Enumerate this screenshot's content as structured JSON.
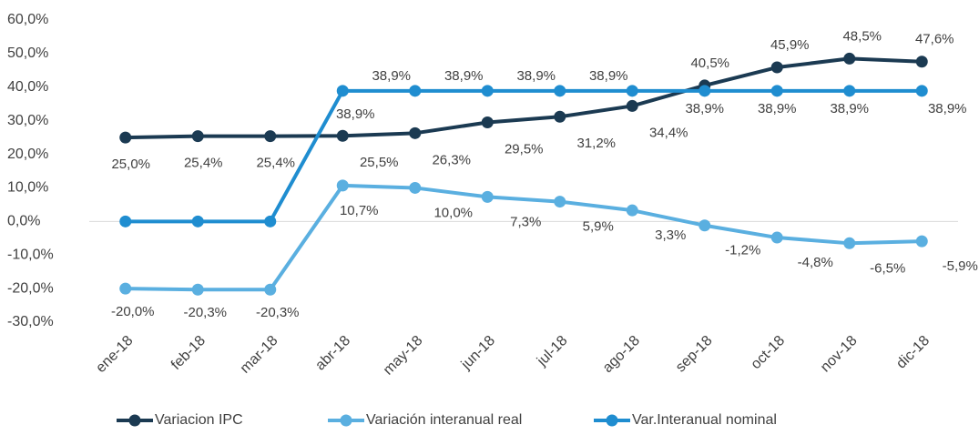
{
  "chart_data": {
    "type": "line",
    "categories": [
      "ene-18",
      "feb-18",
      "mar-18",
      "abr-18",
      "may-18",
      "jun-18",
      "jul-18",
      "ago-18",
      "sep-18",
      "oct-18",
      "nov-18",
      "dic-18"
    ],
    "series": [
      {
        "name": "Variacion IPC",
        "color": "#1b3a52",
        "values": [
          25.0,
          25.4,
          25.4,
          25.5,
          26.3,
          29.5,
          31.2,
          34.4,
          40.5,
          45.9,
          48.5,
          47.6
        ],
        "value_labels": [
          "25,0%",
          "25,4%",
          "25,4%",
          "25,5%",
          "26,3%",
          "29,5%",
          "31,2%",
          "34,4%",
          "40,5%",
          "45,9%",
          "48,5%",
          "47,6%"
        ]
      },
      {
        "name": "Variación interanual real",
        "color": "#5aafe0",
        "values": [
          -20.0,
          -20.3,
          -20.3,
          10.7,
          10.0,
          7.3,
          5.9,
          3.3,
          -1.2,
          -4.8,
          -6.5,
          -5.9
        ],
        "value_labels": [
          "-20,0%",
          "-20,3%",
          "-20,3%",
          "10,7%",
          "10,0%",
          "7,3%",
          "5,9%",
          "3,3%",
          "-1,2%",
          "-4,8%",
          "-6,5%",
          "-5,9%"
        ]
      },
      {
        "name": "Var.Interanual nominal",
        "color": "#1f8dd0",
        "values": [
          0,
          0,
          0,
          38.9,
          38.9,
          38.9,
          38.9,
          38.9,
          38.9,
          38.9,
          38.9,
          38.9
        ],
        "value_labels": [
          null,
          null,
          null,
          "38,9%",
          "38,9%",
          "38,9%",
          "38,9%",
          "38,9%",
          "38,9%",
          "38,9%",
          "38,9%",
          "38,9%"
        ]
      }
    ],
    "ylim": [
      -30,
      60
    ],
    "yticks": [
      {
        "value": -30,
        "label": "-30,0%"
      },
      {
        "value": -20,
        "label": "-20,0%"
      },
      {
        "value": -10,
        "label": "-10,0%"
      },
      {
        "value": 0,
        "label": "0,0%"
      },
      {
        "value": 10,
        "label": "10,0%"
      },
      {
        "value": 20,
        "label": "20,0%"
      },
      {
        "value": 30,
        "label": "30,0%"
      },
      {
        "value": 40,
        "label": "40,0%"
      },
      {
        "value": 50,
        "label": "50,0%"
      },
      {
        "value": 60,
        "label": "60,0%"
      }
    ],
    "legend": "bottom"
  }
}
